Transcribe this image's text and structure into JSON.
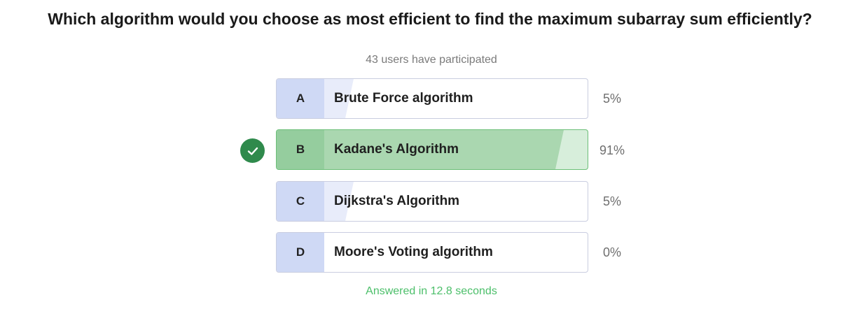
{
  "question": "Which algorithm would you choose as most efficient to find the maximum subarray sum efficiently?",
  "participants_text": "43 users have participated",
  "options": [
    {
      "letter": "A",
      "label": "Brute Force algorithm",
      "percent_text": "5%",
      "percent": 5,
      "correct": false
    },
    {
      "letter": "B",
      "label": "Kadane's Algorithm",
      "percent_text": "91%",
      "percent": 91,
      "correct": true
    },
    {
      "letter": "C",
      "label": "Dijkstra's Algorithm",
      "percent_text": "5%",
      "percent": 5,
      "correct": false
    },
    {
      "letter": "D",
      "label": "Moore's Voting algorithm",
      "percent_text": "0%",
      "percent": 0,
      "correct": false
    }
  ],
  "answered_text": "Answered in 12.8 seconds",
  "icons": {
    "correct": "checkmark-icon"
  },
  "colors": {
    "correct_icon": "#2f8a4c",
    "answered_text": "#4cbf6a",
    "correct_fill": "#aad7b0",
    "letter_bg": "#cfd9f5"
  }
}
